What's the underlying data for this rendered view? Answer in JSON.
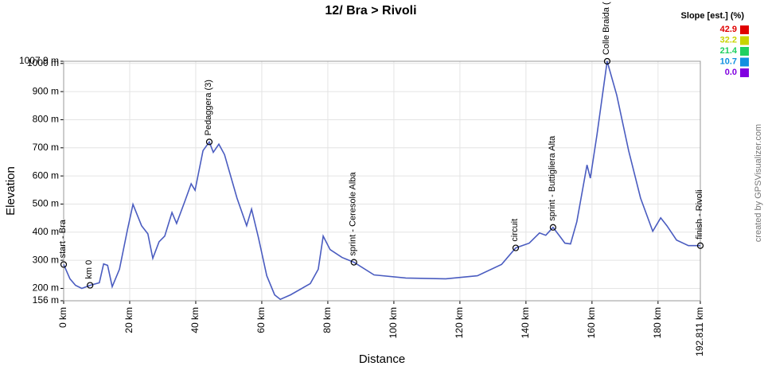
{
  "chart_data": {
    "type": "line",
    "title": "12/ Bra > Rivoli",
    "xlabel": "Distance",
    "ylabel": "Elevation",
    "credit": "created by GPSVisualizer.com",
    "grid": true,
    "xlim": [
      0,
      192.811
    ],
    "ylim": [
      156,
      1007.9
    ],
    "xticks": [
      {
        "value": 0,
        "label": "0 km"
      },
      {
        "value": 20,
        "label": "20 km"
      },
      {
        "value": 40,
        "label": "40 km"
      },
      {
        "value": 60,
        "label": "60 km"
      },
      {
        "value": 80,
        "label": "80 km"
      },
      {
        "value": 100,
        "label": "100 km"
      },
      {
        "value": 120,
        "label": "120 km"
      },
      {
        "value": 140,
        "label": "140 km"
      },
      {
        "value": 160,
        "label": "160 km"
      },
      {
        "value": 180,
        "label": "180 km"
      },
      {
        "value": 192.811,
        "label": "192.811 km"
      }
    ],
    "yticks": [
      {
        "value": 156,
        "label": "156 m"
      },
      {
        "value": 200,
        "label": "200 m"
      },
      {
        "value": 300,
        "label": "300 m"
      },
      {
        "value": 400,
        "label": "400 m"
      },
      {
        "value": 500,
        "label": "500 m"
      },
      {
        "value": 600,
        "label": "600 m"
      },
      {
        "value": 700,
        "label": "700 m"
      },
      {
        "value": 800,
        "label": "800 m"
      },
      {
        "value": 900,
        "label": "900 m"
      },
      {
        "value": 1000,
        "label": "1000 m"
      },
      {
        "value": 1007.9,
        "label": "1007.9 m"
      }
    ],
    "series": [
      {
        "color": "#4a5cc0",
        "x": [
          0,
          1.9,
          3.6,
          5.5,
          8,
          10.8,
          12.1,
          13.3,
          14.7,
          16.9,
          19.3,
          21,
          23.6,
          25.5,
          27,
          28.9,
          30.6,
          32.8,
          34.2,
          36.6,
          38.6,
          39.8,
          42.2,
          44.1,
          45.3,
          47,
          48.7,
          52.5,
          55.4,
          56.9,
          59,
          61.5,
          63.9,
          65.6,
          68.7,
          74.7,
          77.1,
          78.6,
          80.7,
          84.3,
          87.9,
          94,
          103.6,
          115.7,
          125.3,
          132.6,
          136.9,
          141,
          144.1,
          146,
          148.2,
          150.6,
          151.8,
          153.5,
          155.4,
          158.5,
          159.5,
          161.5,
          164.6,
          167.5,
          171.1,
          174.7,
          178.4,
          180.8,
          182.7,
          185.6,
          189.2,
          192.811
        ],
        "values": [
          285,
          234,
          211,
          200,
          211,
          220,
          287,
          282,
          206,
          268,
          408,
          499,
          423,
          394,
          307,
          366,
          386,
          470,
          431,
          507,
          572,
          549,
          690,
          721,
          684,
          713,
          676,
          521,
          423,
          482,
          380,
          245,
          177,
          161,
          177,
          217,
          268,
          386,
          338,
          310,
          293,
          248,
          237,
          234,
          245,
          285,
          344,
          361,
          397,
          389,
          417,
          380,
          361,
          358,
          437,
          639,
          592,
          746,
          1007.9,
          887,
          690,
          521,
          403,
          451,
          423,
          372,
          352,
          352
        ]
      }
    ],
    "waypoints": [
      {
        "name": "start - Bra",
        "x": 0,
        "y": 285
      },
      {
        "name": "km 0",
        "x": 8,
        "y": 211
      },
      {
        "name": "Pedaggera (3)",
        "x": 44.1,
        "y": 721
      },
      {
        "name": "sprint - Ceresole Alba",
        "x": 87.9,
        "y": 293
      },
      {
        "name": "circuit",
        "x": 136.9,
        "y": 344
      },
      {
        "name": "sprint - Buttigliera Alta",
        "x": 148.2,
        "y": 417
      },
      {
        "name": "Colle Braida (",
        "x": 164.6,
        "y": 1007.9
      },
      {
        "name": "finish - Rivoli",
        "x": 192.811,
        "y": 352
      }
    ],
    "legend": {
      "title": "Slope [est.] (%)",
      "values": [
        42.9,
        32.2,
        21.4,
        10.7,
        0
      ],
      "value_labels": [
        "42.9",
        "32.2",
        "21.4",
        "10.7",
        "0.0"
      ],
      "colors": [
        "#e00000",
        "#c8d400",
        "#20d060",
        "#1090e0",
        "#8000e0"
      ]
    }
  }
}
